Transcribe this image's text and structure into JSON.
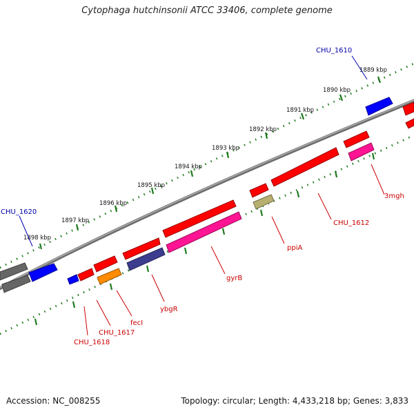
{
  "title": "Cytophaga hutchinsonii ATCC 33406, complete genome",
  "footer": {
    "accession": "Accession: NC_008255",
    "summary": "Topology: circular; Length: 4,433,218 bp; Genes: 3,833"
  },
  "colors": {
    "backbone": "#8a8a8a",
    "tick": "#1f7a1f",
    "tick_label": "#111111",
    "label_red": "#cc0000",
    "label_blue": "#0000aa"
  },
  "ticks": [
    "1889 kbp",
    "1890 kbp",
    "1891 kbp",
    "1892 kbp",
    "1893 kbp",
    "1894 kbp",
    "1895 kbp",
    "1896 kbp",
    "1897 kbp",
    "1898 kbp"
  ],
  "genes_upper": [
    {
      "id": "g_u1",
      "color": "#ff0000"
    },
    {
      "id": "g_u2",
      "color": "#ff0000"
    },
    {
      "id": "g_u3",
      "color": "#ff0000"
    },
    {
      "id": "g_u4",
      "color": "#ff0000"
    },
    {
      "id": "g_u5",
      "color": "#ff0000"
    },
    {
      "id": "g_u6",
      "color": "#ff0000"
    },
    {
      "id": "g_u7",
      "color": "#ff0000"
    },
    {
      "id": "g_u8",
      "color": "#0000ff"
    },
    {
      "id": "g_u9",
      "color": "#0000ff"
    },
    {
      "id": "g_u10",
      "color": "#0000ff"
    },
    {
      "id": "g_u11",
      "color": "#666666"
    },
    {
      "id": "g_u12",
      "color": "#666666"
    },
    {
      "id": "g_u13",
      "color": "#ff0000"
    }
  ],
  "genes_lower": [
    {
      "id": "g_l1",
      "color": "#ff1493"
    },
    {
      "id": "g_l2",
      "color": "#b8b070"
    },
    {
      "id": "g_l3",
      "color": "#ff1493"
    },
    {
      "id": "g_l4",
      "color": "#3d3d8f"
    },
    {
      "id": "g_l5",
      "color": "#ff8c00"
    }
  ],
  "labels": [
    {
      "text": "CHU_1610",
      "color": "blue"
    },
    {
      "text": "CHU_1620",
      "color": "blue"
    },
    {
      "text": "3mgh",
      "color": "red"
    },
    {
      "text": "CHU_1612",
      "color": "red"
    },
    {
      "text": "ppiA",
      "color": "red"
    },
    {
      "text": "gyrB",
      "color": "red"
    },
    {
      "text": "ybgR",
      "color": "red"
    },
    {
      "text": "fecI",
      "color": "red"
    },
    {
      "text": "CHU_1617",
      "color": "red"
    },
    {
      "text": "CHU_1618",
      "color": "red"
    }
  ]
}
